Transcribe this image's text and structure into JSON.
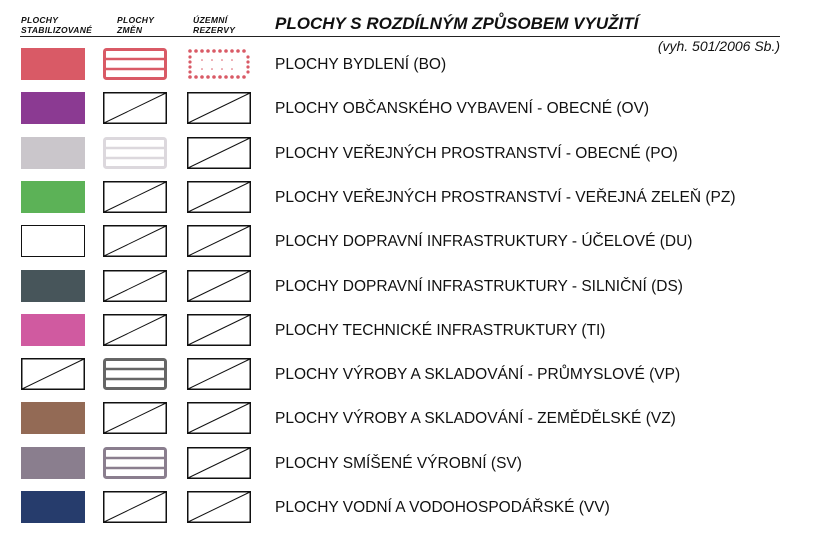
{
  "columns": [
    {
      "line1": "PLOCHY",
      "line2": "STABILIZOVANÉ"
    },
    {
      "line1": "PLOCHY",
      "line2": "ZMĚN"
    },
    {
      "line1": "ÚZEMNÍ",
      "line2": "REZERVY"
    }
  ],
  "title": "PLOCHY S ROZDÍLNÝM ZPŮSOBEM VYUŽITÍ",
  "subtitle": "(vyh. 501/2006 Sb.)",
  "rows": [
    {
      "label": "PLOCHY BYDLENÍ (BO)",
      "stab": {
        "type": "fill",
        "color": "#d95a66"
      },
      "change": {
        "type": "frame",
        "color": "#d95a66"
      },
      "reserve": {
        "type": "dots",
        "color": "#d95a66"
      }
    },
    {
      "label": "PLOCHY OBČANSKÉHO VYBAVENÍ - OBECNÉ (OV)",
      "stab": {
        "type": "fill",
        "color": "#8b3a92"
      },
      "change": {
        "type": "hatch"
      },
      "reserve": {
        "type": "hatch"
      }
    },
    {
      "label": "PLOCHY VEŘEJNÝCH PROSTRANSTVÍ - OBECNÉ (PO)",
      "stab": {
        "type": "fill",
        "color": "#cac6cb"
      },
      "change": {
        "type": "frame",
        "color": "#dcd8dd"
      },
      "reserve": {
        "type": "hatch"
      }
    },
    {
      "label": "PLOCHY VEŘEJNÝCH PROSTRANSTVÍ - VEŘEJNÁ ZELEŇ (PZ)",
      "stab": {
        "type": "fill",
        "color": "#5cb257"
      },
      "change": {
        "type": "hatch"
      },
      "reserve": {
        "type": "hatch"
      }
    },
    {
      "label": "PLOCHY DOPRAVNÍ INFRASTRUKTURY - ÚČELOVÉ (DU)",
      "stab": {
        "type": "fill",
        "color": "#ffffff"
      },
      "change": {
        "type": "hatch"
      },
      "reserve": {
        "type": "hatch"
      }
    },
    {
      "label": "PLOCHY DOPRAVNÍ INFRASTRUKTURY - SILNIČNÍ (DS)",
      "stab": {
        "type": "fill",
        "color": "#47555a"
      },
      "change": {
        "type": "hatch"
      },
      "reserve": {
        "type": "hatch"
      }
    },
    {
      "label": "PLOCHY TECHNICKÉ INFRASTRUKTURY (TI)",
      "stab": {
        "type": "fill",
        "color": "#d05aa0"
      },
      "change": {
        "type": "hatch"
      },
      "reserve": {
        "type": "hatch"
      }
    },
    {
      "label": "PLOCHY VÝROBY A SKLADOVÁNÍ - PRŮMYSLOVÉ (VP)",
      "stab": {
        "type": "hatch"
      },
      "change": {
        "type": "frame",
        "color": "#666666"
      },
      "reserve": {
        "type": "hatch"
      }
    },
    {
      "label": "PLOCHY VÝROBY A SKLADOVÁNÍ - ZEMĚDĚLSKÉ (VZ)",
      "stab": {
        "type": "fill",
        "color": "#936a55"
      },
      "change": {
        "type": "hatch"
      },
      "reserve": {
        "type": "hatch"
      }
    },
    {
      "label": "PLOCHY SMÍŠENÉ VÝROBNÍ (SV)",
      "stab": {
        "type": "fill",
        "color": "#8a7e8e"
      },
      "change": {
        "type": "frame",
        "color": "#8a7e8e"
      },
      "reserve": {
        "type": "hatch"
      }
    },
    {
      "label": "PLOCHY VODNÍ A VODOHOSPODÁŘSKÉ (VV)",
      "stab": {
        "type": "fill",
        "color": "#263c6c"
      },
      "change": {
        "type": "hatch"
      },
      "reserve": {
        "type": "hatch"
      }
    }
  ]
}
